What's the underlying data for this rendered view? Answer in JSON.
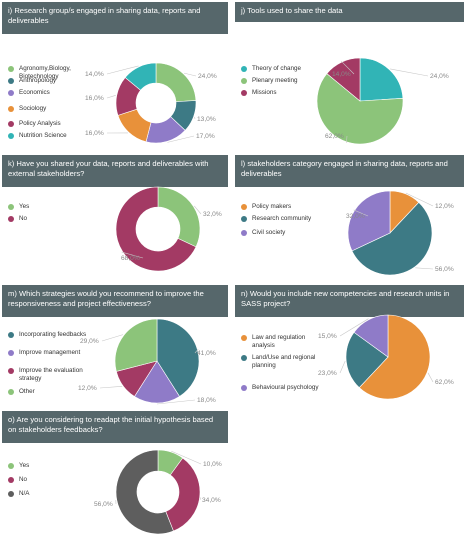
{
  "chart_data": [
    {
      "id": "i",
      "type": "pie",
      "donut": true,
      "title": "i) Research group/s engaged in sharing data, reports and deliverables",
      "categories": [
        "Agronomy,Biology, Biotechnology",
        "Anthropology",
        "Economics",
        "Sociology",
        "Policy Analysis",
        "Nutrition Science"
      ],
      "values": [
        24.0,
        13.0,
        17.0,
        16.0,
        16.0,
        14.0
      ],
      "value_labels": [
        "24,0%",
        "13,0%",
        "17,0%",
        "16,0%",
        "16,0%",
        "14,0%"
      ],
      "colors": [
        "#8cc47a",
        "#3d7a85",
        "#8f7bc8",
        "#e8913a",
        "#a33a64",
        "#31b4b6"
      ]
    },
    {
      "id": "j",
      "type": "pie",
      "donut": false,
      "title": "j) Tools used to share the data",
      "categories": [
        "Theory of change",
        "Plenary meeting",
        "Missions"
      ],
      "values": [
        24.0,
        62.0,
        14.0
      ],
      "value_labels": [
        "24,0%",
        "62,0%",
        "14,0%"
      ],
      "colors": [
        "#31b4b6",
        "#8cc47a",
        "#a33a64"
      ]
    },
    {
      "id": "k",
      "type": "pie",
      "donut": true,
      "title": "k) Have you shared your data, reports and deliverables with external stakeholders?",
      "categories": [
        "Yes",
        "No"
      ],
      "values": [
        32.0,
        68.0
      ],
      "value_labels": [
        "32,0%",
        "68,0%"
      ],
      "colors": [
        "#8cc47a",
        "#a33a64"
      ]
    },
    {
      "id": "l",
      "type": "pie",
      "donut": false,
      "title": "l) stakeholders category engaged in sharing data, reports and deliverables",
      "categories": [
        "Policy makers",
        "Research community",
        "Civil society"
      ],
      "values": [
        12.0,
        56.0,
        32.0
      ],
      "value_labels": [
        "12,0%",
        "56,0%",
        "32,0%"
      ],
      "colors": [
        "#e8913a",
        "#3d7a85",
        "#8f7bc8"
      ]
    },
    {
      "id": "m",
      "type": "pie",
      "donut": false,
      "title": "m) Which strategies would you recommend to improve the responsiveness and project effectiveness?",
      "categories": [
        "Incorporating feedbacks",
        "Improve management",
        "Improve the evaluation strategy",
        "Other"
      ],
      "values": [
        41.0,
        18.0,
        12.0,
        29.0
      ],
      "value_labels": [
        "41,0%",
        "18,0%",
        "12,0%",
        "29,0%"
      ],
      "colors": [
        "#3d7a85",
        "#8f7bc8",
        "#a33a64",
        "#8cc47a"
      ]
    },
    {
      "id": "n",
      "type": "pie",
      "donut": false,
      "title": "n) Would you include new competencies and research units in SASS project?",
      "categories": [
        "Law and regulation analysis",
        "Land/Use and regional planning",
        "Behavioural psychology"
      ],
      "values": [
        62.0,
        23.0,
        15.0
      ],
      "value_labels": [
        "62,0%",
        "23,0%",
        "15,0%"
      ],
      "colors": [
        "#e8913a",
        "#3d7a85",
        "#8f7bc8"
      ]
    },
    {
      "id": "o",
      "type": "pie",
      "donut": true,
      "title": "o) Are you considering to readapt the initial hypothesis based on stakeholders feedbacks?",
      "categories": [
        "Yes",
        "No",
        "N/A"
      ],
      "values": [
        10.0,
        34.0,
        56.0
      ],
      "value_labels": [
        "10,0%",
        "34,0%",
        "56,0%"
      ],
      "colors": [
        "#8cc47a",
        "#a33a64",
        "#5e5e5e"
      ]
    }
  ]
}
